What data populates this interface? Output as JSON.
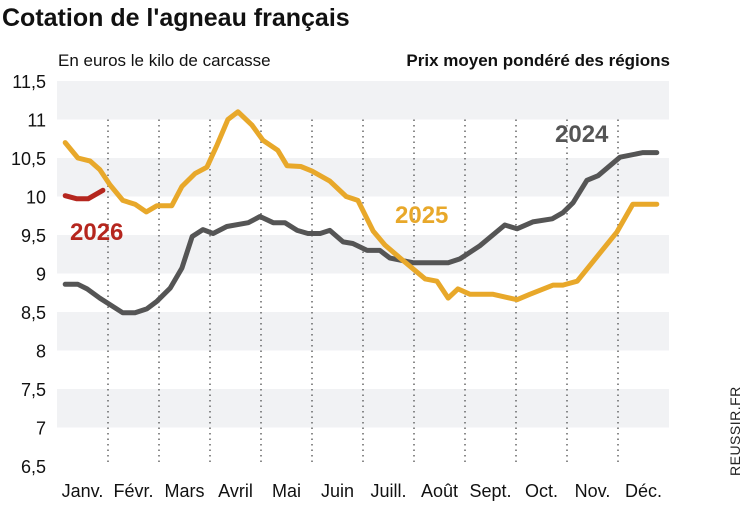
{
  "chart_data": {
    "type": "line",
    "title": "Cotation de l'agneau français",
    "subtitle_left": "En euros le kilo de carcasse",
    "subtitle_right": "Prix moyen pondéré des régions",
    "credit": "REUSSIR.FR",
    "xlabel": "",
    "ylabel": "",
    "x_tick_labels": [
      "Janv.",
      "Févr.",
      "Mars",
      "Avril",
      "Mai",
      "Juin",
      "Juill.",
      "Août",
      "Sept.",
      "Oct.",
      "Nov.",
      "Déc."
    ],
    "y_tick_labels": [
      "11,5",
      "11",
      "10,5",
      "10",
      "9,5",
      "9",
      "8,5",
      "8",
      "7,5",
      "7",
      "6,5"
    ],
    "ylim": [
      6.5,
      11.5
    ],
    "xlim_months": [
      0,
      12
    ],
    "grid": "alternating horizontal bands, dotted vertical month separators",
    "series": [
      {
        "name": "2024",
        "color": "#555555",
        "points": [
          [
            0.16,
            8.86
          ],
          [
            0.41,
            8.86
          ],
          [
            0.59,
            8.8
          ],
          [
            0.84,
            8.68
          ],
          [
            1.29,
            8.49
          ],
          [
            1.53,
            8.49
          ],
          [
            1.76,
            8.54
          ],
          [
            1.96,
            8.64
          ],
          [
            2.22,
            8.81
          ],
          [
            2.45,
            9.07
          ],
          [
            2.65,
            9.48
          ],
          [
            2.86,
            9.57
          ],
          [
            3.06,
            9.52
          ],
          [
            3.33,
            9.61
          ],
          [
            3.75,
            9.66
          ],
          [
            3.98,
            9.74
          ],
          [
            4.24,
            9.66
          ],
          [
            4.47,
            9.66
          ],
          [
            4.71,
            9.56
          ],
          [
            4.92,
            9.52
          ],
          [
            5.16,
            9.52
          ],
          [
            5.35,
            9.56
          ],
          [
            5.61,
            9.41
          ],
          [
            5.8,
            9.39
          ],
          [
            6.08,
            9.3
          ],
          [
            6.33,
            9.3
          ],
          [
            6.53,
            9.2
          ],
          [
            6.98,
            9.14
          ],
          [
            7.67,
            9.14
          ],
          [
            7.9,
            9.19
          ],
          [
            8.29,
            9.36
          ],
          [
            8.78,
            9.63
          ],
          [
            9.02,
            9.58
          ],
          [
            9.33,
            9.67
          ],
          [
            9.71,
            9.71
          ],
          [
            9.92,
            9.79
          ],
          [
            10.12,
            9.92
          ],
          [
            10.39,
            10.21
          ],
          [
            10.61,
            10.27
          ],
          [
            11.04,
            10.51
          ],
          [
            11.49,
            10.57
          ],
          [
            11.76,
            10.57
          ]
        ]
      },
      {
        "name": "2025",
        "color": "#E8A82A",
        "points": [
          [
            0.16,
            10.7
          ],
          [
            0.41,
            10.5
          ],
          [
            0.65,
            10.46
          ],
          [
            0.84,
            10.35
          ],
          [
            1.04,
            10.15
          ],
          [
            1.29,
            9.95
          ],
          [
            1.53,
            9.9
          ],
          [
            1.75,
            9.8
          ],
          [
            1.96,
            9.88
          ],
          [
            2.25,
            9.88
          ],
          [
            2.45,
            10.13
          ],
          [
            2.71,
            10.3
          ],
          [
            2.94,
            10.38
          ],
          [
            3.14,
            10.67
          ],
          [
            3.35,
            11.0
          ],
          [
            3.55,
            11.1
          ],
          [
            3.82,
            10.93
          ],
          [
            4.04,
            10.73
          ],
          [
            4.33,
            10.6
          ],
          [
            4.51,
            10.4
          ],
          [
            4.78,
            10.39
          ],
          [
            5.0,
            10.33
          ],
          [
            5.35,
            10.2
          ],
          [
            5.67,
            10.0
          ],
          [
            5.9,
            9.95
          ],
          [
            6.2,
            9.55
          ],
          [
            6.43,
            9.37
          ],
          [
            6.73,
            9.2
          ],
          [
            7.22,
            8.93
          ],
          [
            7.45,
            8.9
          ],
          [
            7.67,
            8.68
          ],
          [
            7.86,
            8.8
          ],
          [
            8.1,
            8.73
          ],
          [
            8.55,
            8.73
          ],
          [
            9.02,
            8.66
          ],
          [
            9.27,
            8.73
          ],
          [
            9.73,
            8.85
          ],
          [
            9.92,
            8.85
          ],
          [
            10.2,
            8.9
          ],
          [
            10.98,
            9.54
          ],
          [
            11.29,
            9.9
          ],
          [
            11.76,
            9.9
          ]
        ]
      },
      {
        "name": "2026",
        "color": "#B5261E",
        "points": [
          [
            0.16,
            10.01
          ],
          [
            0.39,
            9.97
          ],
          [
            0.61,
            9.97
          ],
          [
            0.9,
            10.08
          ]
        ]
      }
    ]
  }
}
